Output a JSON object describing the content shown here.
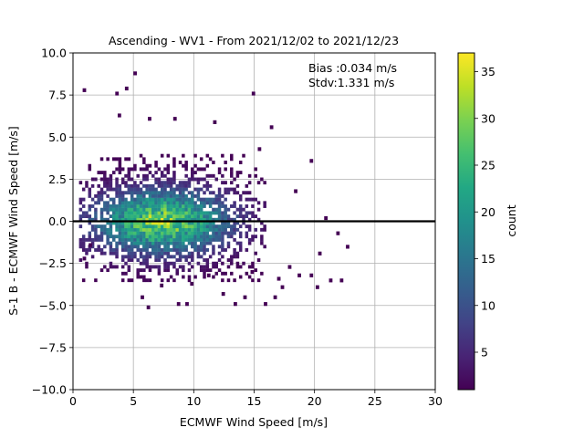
{
  "chart_data": {
    "type": "heatmap",
    "title": "Ascending - WV1 - From 2021/12/02 to 2021/12/23",
    "xlabel": "ECMWF Wind Speed [m/s]",
    "ylabel": "S-1 B - ECMWF Wind Speed [m/s]",
    "xlim": [
      0,
      30
    ],
    "ylim": [
      -10,
      10
    ],
    "xticks": [
      "0",
      "5",
      "10",
      "15",
      "20",
      "25",
      "30"
    ],
    "yticks": [
      "−10.0",
      "−7.5",
      "−5.0",
      "−2.5",
      "0.0",
      "2.5",
      "5.0",
      "7.5",
      "10.0"
    ],
    "grid": true,
    "reference_line_y": 0,
    "annotations": [
      "Bias :0.034 m/s",
      "Stdv:1.331 m/s"
    ],
    "colorbar": {
      "label": "count",
      "range": [
        1,
        37
      ],
      "ticks": [
        "5",
        "10",
        "15",
        "20",
        "25",
        "30",
        "35"
      ],
      "colormap": "viridis"
    },
    "density_peak": {
      "x": 7.2,
      "y": -0.1,
      "count": 37
    },
    "bin_size": {
      "x": 0.25,
      "y": 0.2
    },
    "outlier_bins": [
      [
        5,
        8.7
      ],
      [
        0.8,
        7.7
      ],
      [
        3.5,
        7.5
      ],
      [
        14.8,
        7.5
      ],
      [
        4.3,
        7.8
      ],
      [
        6.2,
        6.0
      ],
      [
        3.7,
        6.2
      ],
      [
        8.3,
        6.0
      ],
      [
        11.6,
        5.8
      ],
      [
        16.3,
        5.5
      ],
      [
        15.3,
        4.2
      ],
      [
        19.6,
        3.5
      ],
      [
        18.3,
        1.7
      ],
      [
        20.8,
        0.1
      ],
      [
        21.8,
        -0.8
      ],
      [
        22.6,
        -1.6
      ],
      [
        20.3,
        -2.0
      ],
      [
        18.6,
        -3.3
      ],
      [
        19.6,
        -3.3
      ],
      [
        21.2,
        -3.6
      ],
      [
        22.1,
        -3.6
      ],
      [
        20.1,
        -4.0
      ],
      [
        16.6,
        -4.6
      ],
      [
        17.2,
        -4.0
      ],
      [
        14.1,
        -4.6
      ],
      [
        13.3,
        -5.0
      ],
      [
        15.8,
        -5.0
      ],
      [
        8.6,
        -5.0
      ],
      [
        9.3,
        -5.0
      ],
      [
        6.1,
        -5.2
      ],
      [
        5.6,
        -4.6
      ],
      [
        7.2,
        -3.9
      ],
      [
        1.3,
        -1.5
      ],
      [
        0.8,
        -2.3
      ],
      [
        12.3,
        -4.4
      ],
      [
        11.1,
        -3.3
      ],
      [
        16.9,
        -3.5
      ],
      [
        17.8,
        -2.8
      ],
      [
        14.7,
        -3.1
      ],
      [
        9.7,
        -3.8
      ]
    ],
    "colors": {
      "reference_line": "#000000",
      "grid": "#b0b0b0"
    }
  }
}
